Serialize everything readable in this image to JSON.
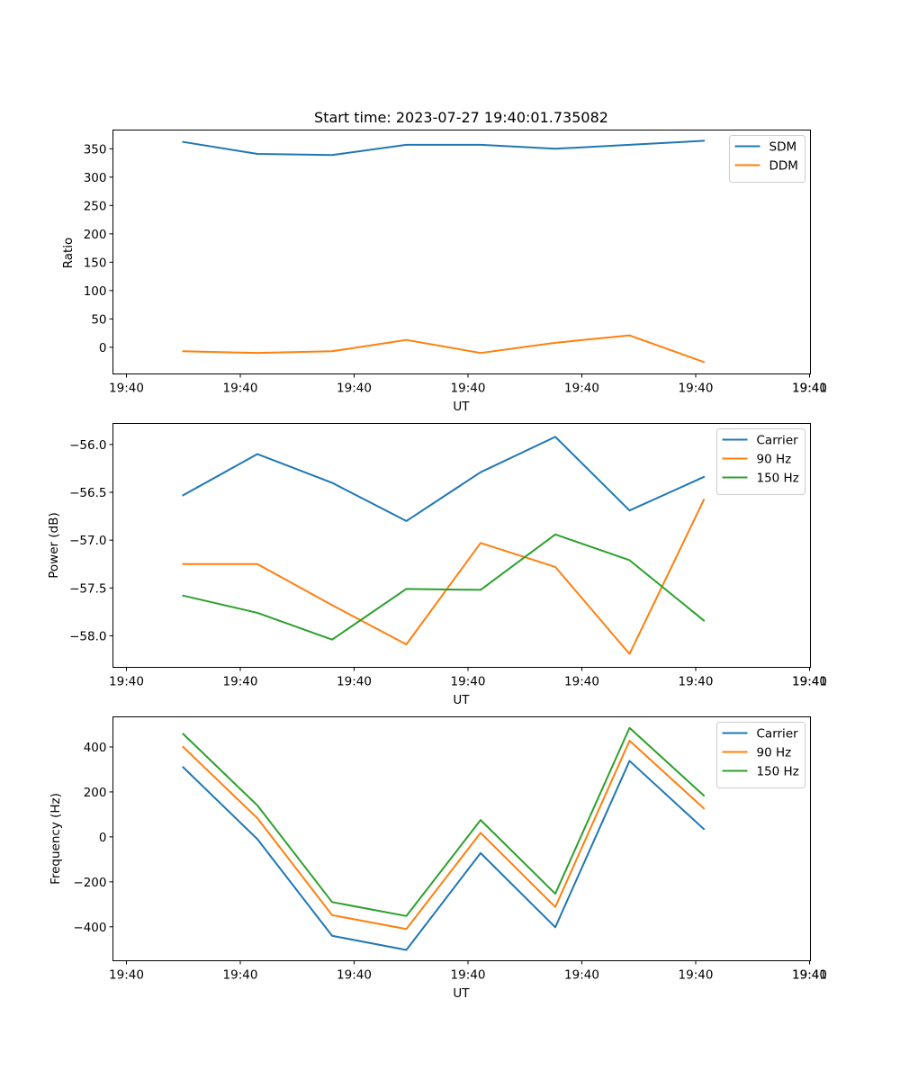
{
  "chart_data": [
    {
      "type": "line",
      "title": "Start time: 2023-07-27 19:40:01.735082",
      "xlabel": "UT",
      "ylabel": "Ratio",
      "x_ticks": [
        "19:40",
        "19:40",
        "19:40",
        "19:40",
        "19:40",
        "19:40",
        "19:40",
        "19:41"
      ],
      "y_ticks": [
        0,
        50,
        100,
        150,
        200,
        250,
        300,
        350
      ],
      "ylim": [
        -47,
        383
      ],
      "legend_location": "upper right",
      "series": [
        {
          "name": "SDM",
          "color": "#1f77b4",
          "values": [
            362,
            341,
            339,
            357,
            357,
            350,
            357,
            364
          ]
        },
        {
          "name": "DDM",
          "color": "#ff7f0e",
          "values": [
            -7,
            -10,
            -7,
            13,
            -10,
            8,
            21,
            -26
          ]
        }
      ]
    },
    {
      "type": "line",
      "title": "",
      "xlabel": "UT",
      "ylabel": "Power (dB)",
      "x_ticks": [
        "19:40",
        "19:40",
        "19:40",
        "19:40",
        "19:40",
        "19:40",
        "19:40",
        "19:41"
      ],
      "y_ticks": [
        "−58.0",
        "−57.5",
        "−57.0",
        "−56.5",
        "−56.0"
      ],
      "y_tick_values": [
        -58.0,
        -57.5,
        -57.0,
        -56.5,
        -56.0
      ],
      "ylim": [
        -58.33,
        -55.78
      ],
      "legend_location": "upper right",
      "series": [
        {
          "name": "Carrier",
          "color": "#1f77b4",
          "values": [
            -56.53,
            -56.1,
            -56.4,
            -56.8,
            -56.29,
            -55.92,
            -56.69,
            -56.34
          ]
        },
        {
          "name": "90 Hz",
          "color": "#ff7f0e",
          "values": [
            -57.25,
            -57.25,
            -57.68,
            -58.09,
            -57.03,
            -57.28,
            -58.19,
            -56.58
          ]
        },
        {
          "name": "150 Hz",
          "color": "#2ca02c",
          "values": [
            -57.58,
            -57.76,
            -58.04,
            -57.51,
            -57.52,
            -56.94,
            -57.21,
            -57.84
          ]
        }
      ]
    },
    {
      "type": "line",
      "title": "",
      "xlabel": "UT",
      "ylabel": "Frequency (Hz)",
      "x_ticks": [
        "19:40",
        "19:40",
        "19:40",
        "19:40",
        "19:40",
        "19:40",
        "19:40",
        "19:41"
      ],
      "y_ticks": [
        "−400",
        "−200",
        "0",
        "200",
        "400"
      ],
      "y_tick_values": [
        -400,
        -200,
        0,
        200,
        400
      ],
      "ylim": [
        -551,
        534
      ],
      "legend_location": "upper right",
      "series": [
        {
          "name": "Carrier",
          "color": "#1f77b4",
          "values": [
            310,
            -10,
            -440,
            -503,
            -72,
            -402,
            338,
            35
          ]
        },
        {
          "name": "90 Hz",
          "color": "#ff7f0e",
          "values": [
            400,
            83,
            -348,
            -410,
            18,
            -312,
            428,
            127
          ]
        },
        {
          "name": "150 Hz",
          "color": "#2ca02c",
          "values": [
            458,
            140,
            -290,
            -352,
            75,
            -253,
            485,
            184
          ]
        }
      ]
    }
  ]
}
